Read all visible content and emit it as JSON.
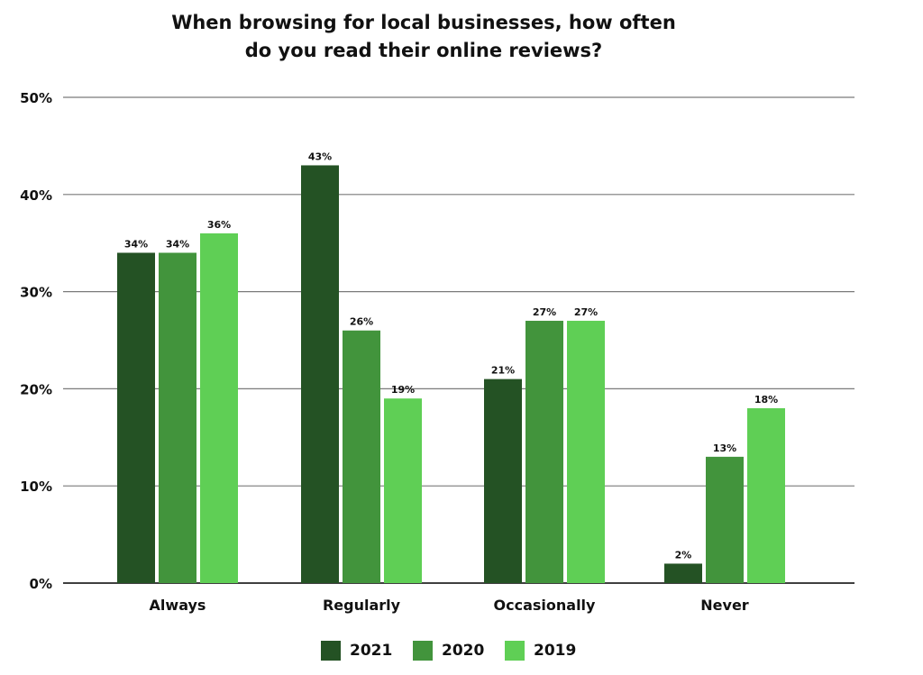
{
  "colors": {
    "grid": "#7a7a7a",
    "axis": "#000000",
    "series": [
      "#245224",
      "#42943c",
      "#5fcf55"
    ]
  },
  "chart_data": {
    "type": "bar",
    "title_lines": [
      "When browsing for local businesses, how often",
      "do you read their online reviews?"
    ],
    "categories": [
      "Always",
      "Regularly",
      "Occasionally",
      "Never"
    ],
    "series": [
      {
        "name": "2021",
        "values": [
          34,
          43,
          21,
          2
        ],
        "labels": [
          "34%",
          "43%",
          "21%",
          "2%"
        ]
      },
      {
        "name": "2020",
        "values": [
          34,
          26,
          27,
          13
        ],
        "labels": [
          "34%",
          "26%",
          "27%",
          "13%"
        ]
      },
      {
        "name": "2019",
        "values": [
          36,
          19,
          27,
          18
        ],
        "labels": [
          "36%",
          "19%",
          "27%",
          "18%"
        ]
      }
    ],
    "ylim": [
      0,
      50
    ],
    "yticks": [
      0,
      10,
      20,
      30,
      40,
      50
    ],
    "ytick_labels": [
      "0%",
      "10%",
      "20%",
      "30%",
      "40%",
      "50%"
    ],
    "grid": true,
    "legend_position": "bottom-center"
  }
}
